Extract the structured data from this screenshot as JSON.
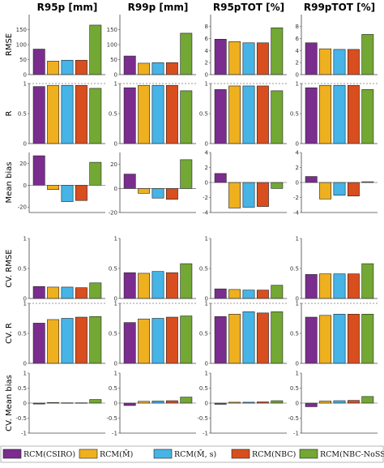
{
  "chart_data": {
    "type": "bar",
    "columns": [
      "R95p [mm]",
      "R99p [mm]",
      "R95pTOT [%]",
      "R99pTOT [%]"
    ],
    "rows": [
      "RMSE",
      "R",
      "Mean bias",
      "CV. RMSE",
      "CV. R",
      "CV. Mean bias"
    ],
    "series": [
      {
        "name": "RCM(CSIRO)",
        "color": "#7b2c8f"
      },
      {
        "name": "RCM(M̄)",
        "color": "#efb020"
      },
      {
        "name": "RCM(M̄, s)",
        "color": "#46b4e6"
      },
      {
        "name": "RCM(NBC)",
        "color": "#d94e1f"
      },
      {
        "name": "RCM(NBC-NoSST)",
        "color": "#72a833"
      }
    ],
    "panels": [
      [
        {
          "ylim": [
            0,
            200
          ],
          "ticks": [],
          "values": [
            85,
            45,
            48,
            48,
            165
          ]
        },
        {
          "ylim": [
            0,
            1
          ],
          "ticks": [],
          "dashed": 1,
          "values": [
            0.95,
            0.97,
            0.97,
            0.97,
            0.92
          ]
        },
        {
          "ylim": [
            -25,
            30
          ],
          "ticks": [],
          "zero": true,
          "values": [
            27,
            -4,
            -15,
            -14,
            21
          ]
        },
        {
          "ylim": [
            0,
            1
          ],
          "ticks": [],
          "values": [
            0.2,
            0.19,
            0.19,
            0.18,
            0.26
          ]
        },
        {
          "ylim": [
            0,
            1
          ],
          "ticks": [],
          "dashed": 1,
          "values": [
            0.67,
            0.73,
            0.75,
            0.77,
            0.78
          ]
        },
        {
          "ylim": [
            -1,
            1
          ],
          "ticks": [],
          "zero": true,
          "values": [
            -0.03,
            0.02,
            0.01,
            0.01,
            0.12
          ]
        }
      ],
      [
        {
          "ylim": [
            0,
            200
          ],
          "ticks": [],
          "values": [
            62,
            38,
            40,
            40,
            138
          ]
        },
        {
          "ylim": [
            0,
            1
          ],
          "ticks": [],
          "dashed": 1,
          "values": [
            0.93,
            0.97,
            0.97,
            0.97,
            0.88
          ]
        },
        {
          "ylim": [
            -20,
            30
          ],
          "ticks": [
            "20",
            "0",
            "-20"
          ],
          "tickvals": [
            20,
            0,
            -20
          ],
          "zero": true,
          "values": [
            12,
            -4,
            -8,
            -9,
            24
          ]
        },
        {
          "ylim": [
            0,
            1
          ],
          "ticks": [],
          "values": [
            0.43,
            0.42,
            0.45,
            0.43,
            0.58
          ]
        },
        {
          "ylim": [
            0,
            1
          ],
          "ticks": [],
          "dashed": 1,
          "values": [
            0.68,
            0.74,
            0.75,
            0.77,
            0.79
          ]
        },
        {
          "ylim": [
            -1,
            1
          ],
          "ticks": [],
          "zero": true,
          "values": [
            -0.08,
            0.06,
            0.07,
            0.08,
            0.2
          ]
        }
      ],
      [
        {
          "ylim": [
            0,
            10
          ],
          "ticks": [],
          "values": [
            5.9,
            5.5,
            5.3,
            5.3,
            7.8
          ]
        },
        {
          "ylim": [
            0,
            1
          ],
          "ticks": [],
          "dashed": 1,
          "values": [
            0.9,
            0.96,
            0.96,
            0.96,
            0.88
          ]
        },
        {
          "ylim": [
            -4,
            4
          ],
          "ticks": [
            "4",
            "2",
            "0",
            "-2",
            "-4"
          ],
          "tickvals": [
            4,
            2,
            0,
            -2,
            -4
          ],
          "zero": true,
          "values": [
            1.2,
            -3.4,
            -3.3,
            -3.2,
            -0.8
          ]
        },
        {
          "ylim": [
            0,
            1
          ],
          "ticks": [],
          "values": [
            0.16,
            0.15,
            0.14,
            0.14,
            0.22
          ]
        },
        {
          "ylim": [
            0,
            1
          ],
          "ticks": [],
          "dashed": 1,
          "values": [
            0.78,
            0.82,
            0.86,
            0.84,
            0.86
          ]
        },
        {
          "ylim": [
            -1,
            1
          ],
          "ticks": [],
          "zero": true,
          "values": [
            -0.04,
            0.03,
            0.03,
            0.04,
            0.08
          ]
        }
      ],
      [
        {
          "ylim": [
            0,
            10
          ],
          "ticks": [],
          "values": [
            5.3,
            4.3,
            4.2,
            4.2,
            6.7
          ]
        },
        {
          "ylim": [
            0,
            1
          ],
          "ticks": [],
          "dashed": 1,
          "values": [
            0.93,
            0.97,
            0.97,
            0.97,
            0.9
          ]
        },
        {
          "ylim": [
            -4,
            4
          ],
          "ticks": [
            "4",
            "2",
            "0",
            "-2",
            "-4"
          ],
          "tickvals": [
            4,
            2,
            0,
            -2,
            -4
          ],
          "zero": true,
          "values": [
            0.8,
            -2.2,
            -1.7,
            -1.8,
            0.1
          ]
        },
        {
          "ylim": [
            0,
            1
          ],
          "ticks": [],
          "values": [
            0.4,
            0.41,
            0.41,
            0.41,
            0.58
          ]
        },
        {
          "ylim": [
            0,
            1
          ],
          "ticks": [],
          "dashed": 1,
          "values": [
            0.77,
            0.8,
            0.82,
            0.82,
            0.82
          ]
        },
        {
          "ylim": [
            -1,
            1
          ],
          "ticks": [],
          "zero": true,
          "values": [
            -0.12,
            0.07,
            0.08,
            0.09,
            0.22
          ]
        }
      ]
    ]
  },
  "visible_ticks": {
    "col0": {
      "0": [
        "150",
        "100",
        "50",
        "0"
      ],
      "1": [
        "1",
        "0.5",
        "0"
      ],
      "2": [
        "20",
        "0",
        "-20"
      ],
      "3": [
        "1",
        "0.5",
        "0"
      ],
      "4": [
        "1",
        "0.5",
        "0"
      ],
      "5": [
        "1",
        "0.5",
        "0",
        "-0.5",
        "-1"
      ]
    },
    "col1": {
      "0": [
        "150",
        "100",
        "50",
        "0"
      ],
      "1": [
        "1",
        "0.5",
        "0"
      ],
      "3": [
        "1",
        "0.5",
        "0"
      ],
      "4": [
        "1",
        "0.5",
        "0"
      ],
      "5": [
        "1",
        "0.5",
        "0",
        "-0.5",
        "-1"
      ]
    },
    "col2": {
      "0": [
        "8",
        "6",
        "4",
        "2",
        "0"
      ],
      "1": [
        "1",
        "0.5",
        "0"
      ],
      "3": [
        "1",
        "0.5",
        "0"
      ],
      "4": [
        "1",
        "0.5",
        "0"
      ],
      "5": [
        "1",
        "0.5",
        "0",
        "-0.5",
        "-1"
      ]
    },
    "col3": {
      "0": [
        "8",
        "6",
        "4",
        "2",
        "0"
      ],
      "1": [
        "1",
        "0.5",
        "0"
      ],
      "3": [
        "1",
        "0.5",
        "0"
      ],
      "4": [
        "1",
        "0.5",
        "0"
      ],
      "5": [
        "1",
        "0.5",
        "0",
        "-0.5",
        "-1"
      ]
    }
  }
}
